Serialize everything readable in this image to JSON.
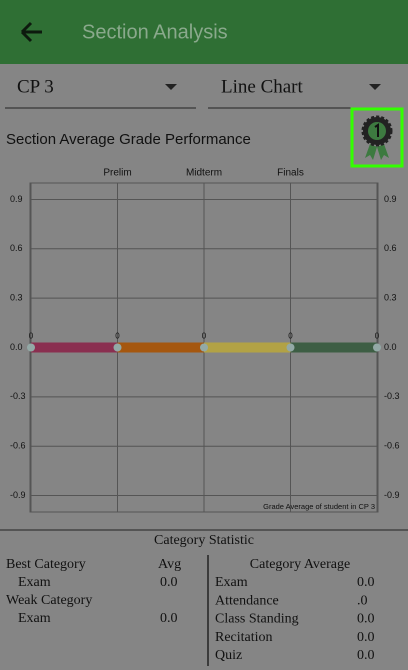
{
  "header": {
    "title": "Section Analysis"
  },
  "selectors": [
    {
      "label": "CP 3"
    },
    {
      "label": "Line Chart"
    }
  ],
  "chart_data": {
    "type": "line",
    "title": "Section Average Grade Performance",
    "description": "Grade Average of student in CP 3",
    "categories": [
      null,
      "Prelim",
      "Midterm",
      "Finals",
      null
    ],
    "values": [
      0,
      0,
      0,
      0,
      0
    ],
    "segment_colors": [
      "#8a2f50",
      "#a5570f",
      "#b2a245",
      "#3d5e44"
    ],
    "point_color": "#93a9a6",
    "ylim": [
      -1,
      1
    ],
    "yticks": [
      -0.9,
      -0.6,
      -0.3,
      {
        "value": 0,
        "label": "0.0"
      },
      0.3,
      0.6,
      0.9
    ],
    "grid": true
  },
  "statistics": {
    "title": "Category Statistic",
    "best": {
      "label": "Best Category",
      "avg_label": "Avg",
      "rows": [
        {
          "name": "Exam",
          "value": "0.0"
        }
      ]
    },
    "weak": {
      "label": "Weak Category",
      "rows": [
        {
          "name": "Exam",
          "value": "0.0"
        }
      ]
    },
    "averages": {
      "title": "Category Average",
      "rows": [
        {
          "name": "Exam",
          "value": "0.0"
        },
        {
          "name": "Attendance",
          "value": ".0"
        },
        {
          "name": "Class Standing",
          "value": "0.0"
        },
        {
          "name": "Recitation",
          "value": "0.0"
        },
        {
          "name": "Quiz",
          "value": "0.0"
        }
      ]
    }
  }
}
